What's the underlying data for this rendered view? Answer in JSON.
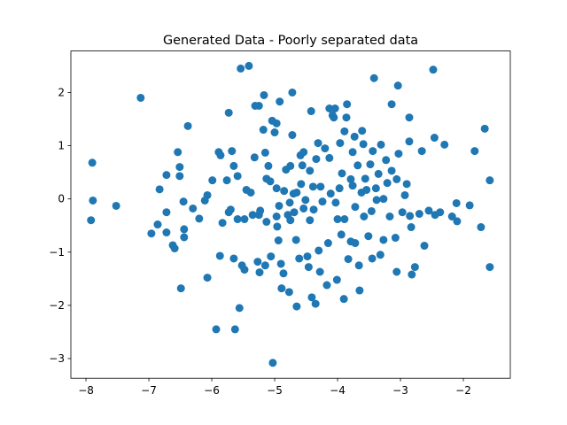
{
  "chart_data": {
    "type": "scatter",
    "title": "Generated Data - Poorly separated data",
    "color": "#1f77b4",
    "xlim": [
      -8.24,
      -1.254
    ],
    "ylim": [
      -3.37,
      2.78
    ],
    "xticks": [
      {
        "value": -8,
        "label": "−8"
      },
      {
        "value": -7,
        "label": "−7"
      },
      {
        "value": -6,
        "label": "−6"
      },
      {
        "value": -5,
        "label": "−5"
      },
      {
        "value": -4,
        "label": "−4"
      },
      {
        "value": -3,
        "label": "−3"
      },
      {
        "value": -2,
        "label": "−2"
      }
    ],
    "yticks": [
      {
        "value": -3,
        "label": "−3"
      },
      {
        "value": -2,
        "label": "−2"
      },
      {
        "value": -1,
        "label": "−1"
      },
      0,
      1,
      2
    ],
    "x": [
      -7.9,
      -7.89,
      -7.92,
      -7.52,
      -7.13,
      -6.96,
      -6.86,
      -6.83,
      -6.72,
      -6.72,
      -6.72,
      -6.62,
      -6.59,
      -6.54,
      -6.51,
      -6.51,
      -6.49,
      -6.45,
      -6.44,
      -6.44,
      -6.38,
      -6.3,
      -6.2,
      -6.11,
      -6.07,
      -6.07,
      -5.99,
      -5.93,
      -5.89,
      -5.86,
      -5.87,
      -5.83,
      -5.76,
      -5.73,
      -5.73,
      -5.7,
      -5.68,
      -5.65,
      -5.63,
      -5.65,
      -5.59,
      -5.59,
      -5.56,
      -5.54,
      -5.52,
      -5.48,
      -5.48,
      -5.45,
      -5.41,
      -5.38,
      -5.35,
      -5.32,
      -5.31,
      -5.27,
      -5.25,
      -5.25,
      -5.24,
      -5.23,
      -5.18,
      -5.17,
      -5.15,
      -5.15,
      -5.13,
      -5.13,
      -5.1,
      -5.07,
      -5.06,
      -5.04,
      -5.0,
      -4.97,
      -4.97,
      -4.97,
      -4.96,
      -4.94,
      -4.92,
      -4.93,
      -4.9,
      -4.89,
      -4.86,
      -4.85,
      -4.82,
      -4.79,
      -4.77,
      -4.76,
      -4.75,
      -4.75,
      -4.72,
      -4.72,
      -4.7,
      -4.69,
      -4.66,
      -4.65,
      -4.65,
      -4.61,
      -4.59,
      -4.58,
      -4.56,
      -4.54,
      -4.54,
      -4.51,
      -4.48,
      -4.46,
      -4.44,
      -4.44,
      -4.42,
      -4.41,
      -4.39,
      -4.38,
      -4.35,
      -4.34,
      -4.31,
      -4.3,
      -4.28,
      -4.27,
      -4.24,
      -4.2,
      -4.17,
      -4.15,
      -4.13,
      -4.13,
      -4.11,
      -4.08,
      -4.06,
      -4.04,
      -4.03,
      -4.01,
      -4.0,
      -3.97,
      -3.96,
      -3.94,
      -3.93,
      -3.9,
      -3.89,
      -3.89,
      -3.86,
      -3.85,
      -3.83,
      -3.79,
      -3.79,
      -3.76,
      -3.76,
      -3.73,
      -3.72,
      -3.72,
      -3.68,
      -3.66,
      -3.65,
      -3.62,
      -3.61,
      -3.59,
      -3.58,
      -3.56,
      -3.54,
      -3.51,
      -3.48,
      -3.46,
      -3.45,
      -3.44,
      -3.42,
      -3.39,
      -3.38,
      -3.35,
      -3.32,
      -3.31,
      -3.27,
      -3.27,
      -3.23,
      -3.21,
      -3.17,
      -3.14,
      -3.14,
      -3.08,
      -3.06,
      -3.06,
      -3.04,
      -3.03,
      -2.97,
      -2.93,
      -2.9,
      -2.86,
      -2.86,
      -2.85,
      -2.83,
      -2.82,
      -2.77,
      -2.7,
      -2.66,
      -2.62,
      -2.55,
      -2.48,
      -2.46,
      -2.45,
      -2.37,
      -2.3,
      -2.18,
      -2.11,
      -2.1,
      -1.9,
      -1.82,
      -1.72,
      -1.66,
      -1.58,
      -1.58,
      -5.03
    ],
    "values": [
      0.68,
      -0.03,
      -0.4,
      -0.13,
      1.9,
      -0.65,
      -0.48,
      0.18,
      0.45,
      -0.25,
      -0.63,
      -0.87,
      -0.93,
      0.88,
      0.6,
      0.43,
      -1.68,
      -0.05,
      -0.57,
      -0.72,
      1.37,
      -0.18,
      -0.37,
      -0.03,
      0.07,
      -1.48,
      0.35,
      -2.45,
      0.88,
      0.82,
      -1.07,
      -0.45,
      0.35,
      1.62,
      -0.25,
      -0.2,
      0.9,
      0.62,
      -2.45,
      -1.12,
      0.43,
      -0.38,
      -2.05,
      2.45,
      -1.25,
      -0.38,
      -1.33,
      0.17,
      2.5,
      0.12,
      -0.3,
      0.78,
      1.75,
      -1.18,
      1.75,
      -0.3,
      -1.38,
      -0.22,
      1.3,
      1.95,
      -1.25,
      0.87,
      0.38,
      -0.43,
      0.62,
      0.33,
      -1.08,
      1.47,
      1.25,
      1.42,
      0.2,
      -0.33,
      -0.52,
      -0.78,
      1.83,
      -0.13,
      -1.22,
      -1.68,
      -1.4,
      0.15,
      0.55,
      -0.3,
      -1.75,
      -0.07,
      0.62,
      -0.4,
      2.0,
      1.2,
      0.1,
      -0.25,
      -0.77,
      -2.02,
      0.12,
      -1.12,
      0.82,
      0.28,
      0.63,
      0.88,
      -0.18,
      -0.02,
      -1.08,
      -1.28,
      0.53,
      -0.4,
      1.65,
      -1.85,
      0.23,
      -0.2,
      -1.97,
      0.75,
      1.05,
      -0.97,
      -1.37,
      0.23,
      -0.05,
      0.95,
      -1.62,
      -0.83,
      0.77,
      1.7,
      0.1,
      1.57,
      1.53,
      1.7,
      -0.07,
      -1.52,
      -0.38,
      0.2,
      1.05,
      -0.67,
      0.48,
      -1.88,
      1.27,
      -0.38,
      1.53,
      1.78,
      -1.13,
      0.37,
      -0.8,
      0.88,
      0.25,
      1.17,
      -0.83,
      -0.15,
      0.63,
      -1.25,
      -1.72,
      0.12,
      1.28,
      1.03,
      -0.33,
      0.38,
      0.17,
      -0.7,
      0.65,
      -0.23,
      -1.12,
      0.9,
      2.27,
      0.2,
      -0.02,
      0.47,
      -1.05,
      1.02,
      -0.77,
      0.0,
      0.73,
      0.3,
      -0.33,
      0.53,
      1.78,
      -0.73,
      -1.37,
      0.37,
      2.13,
      0.85,
      -0.25,
      0.07,
      0.28,
      1.08,
      1.53,
      -0.32,
      -0.53,
      -1.42,
      -1.28,
      -0.28,
      0.9,
      -0.88,
      -0.22,
      2.43,
      1.15,
      -0.3,
      -0.25,
      1.02,
      -0.33,
      -0.08,
      -0.42,
      -0.12,
      0.9,
      -0.53,
      1.32,
      0.35,
      -1.28,
      -3.08
    ]
  }
}
